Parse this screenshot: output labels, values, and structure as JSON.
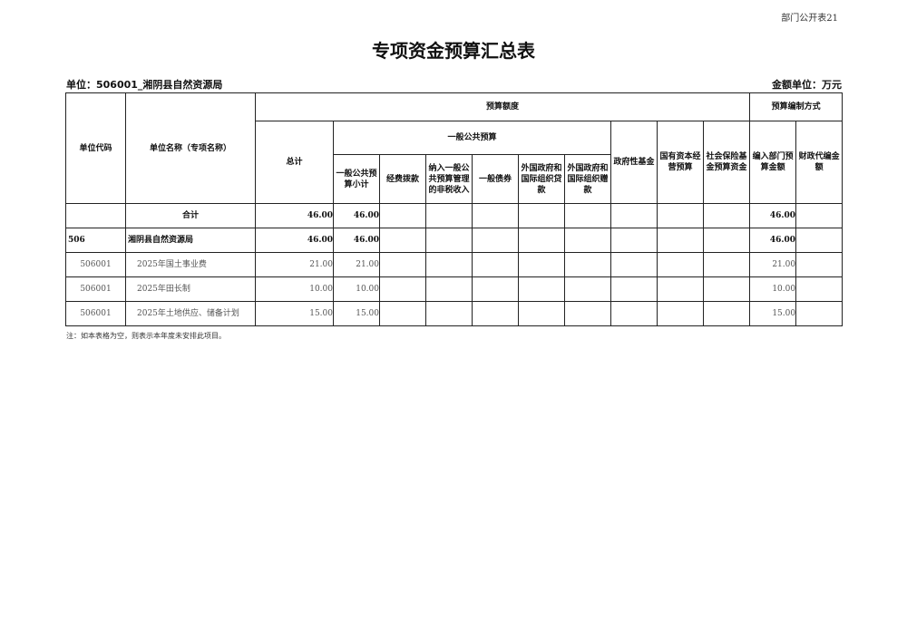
{
  "page_label": "部门公开表21",
  "title": "专项资金预算汇总表",
  "unit": "单位：506001_湘阴县自然资源局",
  "money_unit": "金额单位：万元",
  "headers": {
    "code": "单位代码",
    "name": "单位名称（专项名称）",
    "budget_amount": "预算额度",
    "method": "预算编制方式",
    "total": "总计",
    "general": "一般公共预算",
    "general_subtotal": "一般公共预算小计",
    "funding": "经费拨款",
    "non_tax": "纳入一般公共预算管理的非税收入",
    "bonds": "一般债券",
    "foreign_loans": "外国政府和国际组织贷款",
    "foreign_grants": "外国政府和国际组织赠款",
    "gov_fund": "政府性基金",
    "state_capital": "国有资本经营预算",
    "social_insurance": "社会保险基金预算资金",
    "dept_budget": "编入部门预算金额",
    "fiscal_agent": "财政代编金额"
  },
  "rows": [
    {
      "code": "",
      "name": "合计",
      "total": "46.00",
      "subtotal": "46.00",
      "dept": "46.00"
    },
    {
      "code": "506",
      "name": "湘阴县自然资源局",
      "total": "46.00",
      "subtotal": "46.00",
      "dept": "46.00"
    },
    {
      "code": "506001",
      "name": "2025年国土事业费",
      "total": "21.00",
      "subtotal": "21.00",
      "dept": "21.00"
    },
    {
      "code": "506001",
      "name": "2025年田长制",
      "total": "10.00",
      "subtotal": "10.00",
      "dept": "10.00"
    },
    {
      "code": "506001",
      "name": "2025年土地供应、储备计划",
      "total": "15.00",
      "subtotal": "15.00",
      "dept": "15.00"
    }
  ],
  "note": "注：如本表格为空，则表示本年度未安排此项目。"
}
